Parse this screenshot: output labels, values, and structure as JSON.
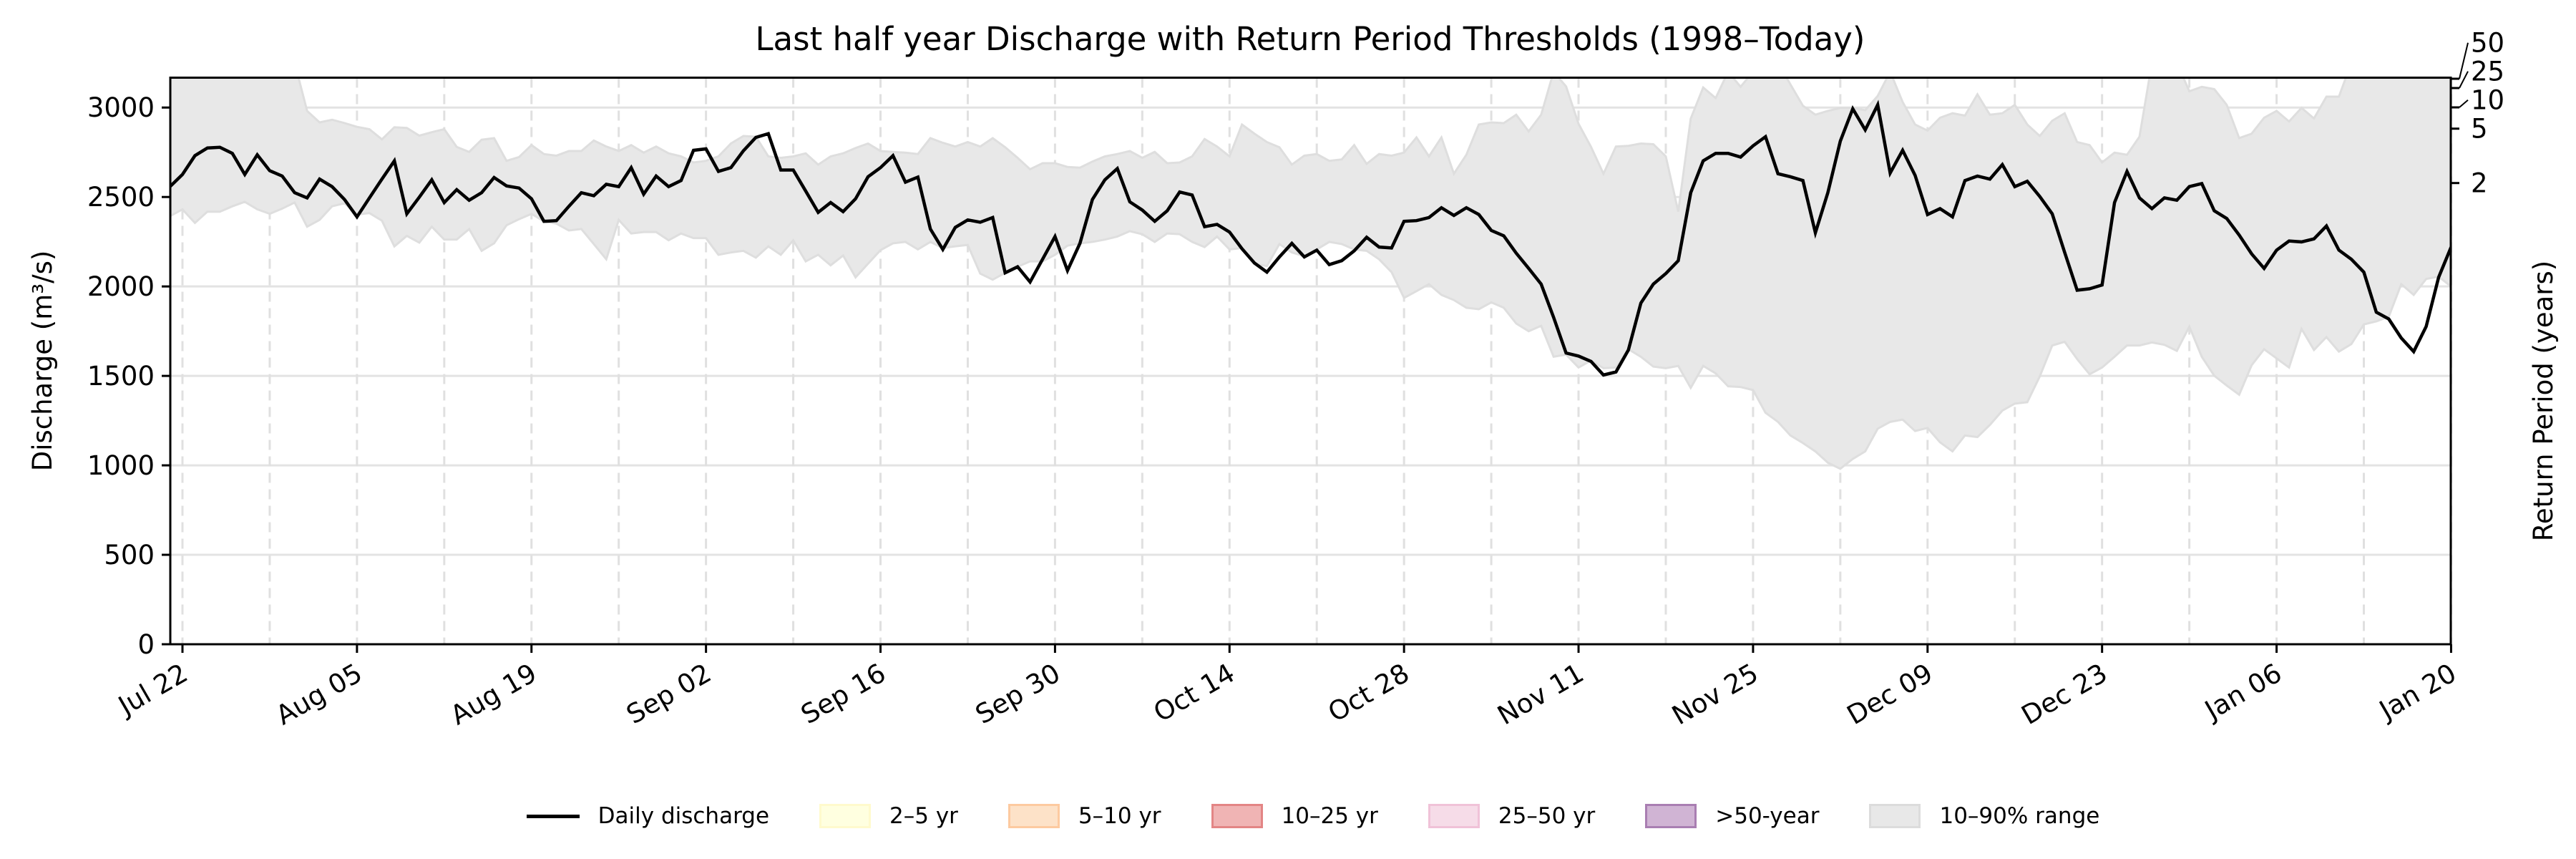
{
  "chart_data": {
    "type": "line",
    "title": "Last half year Discharge with Return Period Thresholds (1998–Today)",
    "ylabel": "Discharge (m³/s)",
    "ylabel_right": "Return Period (years)",
    "ylim": [
      0,
      3167
    ],
    "yticks": [
      0,
      500,
      1000,
      1500,
      2000,
      2500,
      3000
    ],
    "ytick_labels": [
      "0",
      "500",
      "1000",
      "1500",
      "2000",
      "2500",
      "3000"
    ],
    "xtick_labels": [
      "Jul 22",
      "Aug 05",
      "Aug 19",
      "Sep 02",
      "Sep 16",
      "Sep 30",
      "Oct 14",
      "Oct 28",
      "Nov 11",
      "Nov 25",
      "Dec 09",
      "Dec 23",
      "Jan 06",
      "Jan 20"
    ],
    "grid": true,
    "legend_position": "bottom-center",
    "return_period_axis": {
      "tick_labels": [
        "2",
        "5",
        "10",
        "25",
        "50"
      ],
      "discharge_values": [
        2578,
        2882,
        3001,
        3109,
        3161
      ]
    },
    "x": [
      "Jul 21",
      "Jul 22",
      "Jul 23",
      "Jul 24",
      "Jul 25",
      "Jul 26",
      "Jul 27",
      "Jul 28",
      "Jul 29",
      "Jul 30",
      "Jul 31",
      "Aug 01",
      "Aug 02",
      "Aug 03",
      "Aug 04",
      "Aug 05",
      "Aug 06",
      "Aug 07",
      "Aug 08",
      "Aug 09",
      "Aug 10",
      "Aug 11",
      "Aug 12",
      "Aug 13",
      "Aug 14",
      "Aug 15",
      "Aug 16",
      "Aug 17",
      "Aug 18",
      "Aug 19",
      "Aug 20",
      "Aug 21",
      "Aug 22",
      "Aug 23",
      "Aug 24",
      "Aug 25",
      "Aug 26",
      "Aug 27",
      "Aug 28",
      "Aug 29",
      "Aug 30",
      "Aug 31",
      "Sep 01",
      "Sep 02",
      "Sep 03",
      "Sep 04",
      "Sep 05",
      "Sep 06",
      "Sep 07",
      "Sep 08",
      "Sep 09",
      "Sep 10",
      "Sep 11",
      "Sep 12",
      "Sep 13",
      "Sep 14",
      "Sep 15",
      "Sep 16",
      "Sep 17",
      "Sep 18",
      "Sep 19",
      "Sep 20",
      "Sep 21",
      "Sep 22",
      "Sep 23",
      "Sep 24",
      "Sep 25",
      "Sep 26",
      "Sep 27",
      "Sep 28",
      "Sep 29",
      "Sep 30",
      "Oct 01",
      "Oct 02",
      "Oct 03",
      "Oct 04",
      "Oct 05",
      "Oct 06",
      "Oct 07",
      "Oct 08",
      "Oct 09",
      "Oct 10",
      "Oct 11",
      "Oct 12",
      "Oct 13",
      "Oct 14",
      "Oct 15",
      "Oct 16",
      "Oct 17",
      "Oct 18",
      "Oct 19",
      "Oct 20",
      "Oct 21",
      "Oct 22",
      "Oct 23",
      "Oct 24",
      "Oct 25",
      "Oct 26",
      "Oct 27",
      "Oct 28",
      "Oct 29",
      "Oct 30",
      "Oct 31",
      "Nov 01",
      "Nov 02",
      "Nov 03",
      "Nov 04",
      "Nov 05",
      "Nov 06",
      "Nov 07",
      "Nov 08",
      "Nov 09",
      "Nov 10",
      "Nov 11",
      "Nov 12",
      "Nov 13",
      "Nov 14",
      "Nov 15",
      "Nov 16",
      "Nov 17",
      "Nov 18",
      "Nov 19",
      "Nov 20",
      "Nov 21",
      "Nov 22",
      "Nov 23",
      "Nov 24",
      "Nov 25",
      "Nov 26",
      "Nov 27",
      "Nov 28",
      "Nov 29",
      "Nov 30",
      "Dec 01",
      "Dec 02",
      "Dec 03",
      "Dec 04",
      "Dec 05",
      "Dec 06",
      "Dec 07",
      "Dec 08",
      "Dec 09",
      "Dec 10",
      "Dec 11",
      "Dec 12",
      "Dec 13",
      "Dec 14",
      "Dec 15",
      "Dec 16",
      "Dec 17",
      "Dec 18",
      "Dec 19",
      "Dec 20",
      "Dec 21",
      "Dec 22",
      "Dec 23",
      "Dec 24",
      "Dec 25",
      "Dec 26",
      "Dec 27",
      "Dec 28",
      "Dec 29",
      "Dec 30",
      "Dec 31",
      "Jan 01",
      "Jan 02",
      "Jan 03",
      "Jan 04",
      "Jan 05",
      "Jan 06",
      "Jan 07",
      "Jan 08",
      "Jan 09",
      "Jan 10",
      "Jan 11",
      "Jan 12",
      "Jan 13",
      "Jan 14",
      "Jan 15",
      "Jan 16",
      "Jan 17",
      "Jan 18",
      "Jan 19",
      "Jan 20"
    ],
    "series": [
      {
        "name": "Daily discharge",
        "color": "#000000",
        "values": [
          2558,
          2626,
          2731,
          2774,
          2778,
          2744,
          2626,
          2736,
          2647,
          2617,
          2524,
          2495,
          2600,
          2558,
          2486,
          2389,
          2495,
          2600,
          2702,
          2406,
          2499,
          2596,
          2469,
          2541,
          2482,
          2524,
          2609,
          2562,
          2550,
          2490,
          2364,
          2368,
          2448,
          2524,
          2507,
          2571,
          2558,
          2664,
          2516,
          2617,
          2558,
          2592,
          2761,
          2769,
          2643,
          2664,
          2758,
          2833,
          2854,
          2651,
          2651,
          2533,
          2414,
          2469,
          2418,
          2490,
          2613,
          2664,
          2731,
          2583,
          2611,
          2321,
          2207,
          2330,
          2372,
          2359,
          2385,
          2076,
          2110,
          2025,
          2152,
          2279,
          2089,
          2241,
          2486,
          2596,
          2659,
          2473,
          2427,
          2364,
          2423,
          2528,
          2511,
          2334,
          2347,
          2304,
          2211,
          2131,
          2080,
          2165,
          2241,
          2165,
          2203,
          2122,
          2144,
          2199,
          2275,
          2220,
          2215,
          2364,
          2368,
          2385,
          2440,
          2397,
          2440,
          2402,
          2313,
          2283,
          2186,
          2101,
          2013,
          1827,
          1628,
          1611,
          1581,
          1505,
          1522,
          1645,
          1907,
          2013,
          2072,
          2144,
          2524,
          2702,
          2744,
          2744,
          2723,
          2786,
          2837,
          2630,
          2613,
          2592,
          2300,
          2524,
          2812,
          2993,
          2875,
          3015,
          2634,
          2761,
          2621,
          2402,
          2435,
          2389,
          2592,
          2617,
          2600,
          2681,
          2558,
          2588,
          2503,
          2406,
          2190,
          1979,
          1987,
          2008,
          2469,
          2643,
          2495,
          2435,
          2495,
          2482,
          2558,
          2575,
          2423,
          2380,
          2287,
          2182,
          2101,
          2203,
          2254,
          2249,
          2266,
          2338,
          2203,
          2152,
          2080,
          1856,
          1818,
          1712,
          1636,
          1776,
          2051,
          2220
        ]
      }
    ],
    "range_band": {
      "name": "10–90% range",
      "color": "#e8e8e8",
      "lower": [
        2393,
        2431,
        2355,
        2418,
        2418,
        2448,
        2473,
        2431,
        2406,
        2435,
        2469,
        2334,
        2372,
        2448,
        2465,
        2402,
        2410,
        2368,
        2224,
        2283,
        2245,
        2334,
        2262,
        2262,
        2321,
        2199,
        2241,
        2342,
        2376,
        2406,
        2364,
        2351,
        2313,
        2321,
        2237,
        2152,
        2372,
        2296,
        2304,
        2304,
        2258,
        2296,
        2270,
        2270,
        2177,
        2190,
        2199,
        2161,
        2224,
        2177,
        2258,
        2140,
        2177,
        2118,
        2173,
        2051,
        2127,
        2203,
        2241,
        2249,
        2207,
        2249,
        2215,
        2224,
        2232,
        2072,
        2038,
        2076,
        2110,
        2140,
        2140,
        2177,
        2228,
        2241,
        2249,
        2262,
        2279,
        2309,
        2292,
        2249,
        2296,
        2292,
        2249,
        2220,
        2279,
        2207,
        2215,
        2127,
        2114,
        2237,
        2190,
        2169,
        2207,
        2249,
        2237,
        2207,
        2199,
        2152,
        2080,
        1936,
        1974,
        2013,
        1953,
        1924,
        1881,
        1873,
        1911,
        1881,
        1793,
        1750,
        1780,
        1607,
        1619,
        1547,
        1586,
        1543,
        1547,
        1649,
        1607,
        1552,
        1543,
        1556,
        1433,
        1556,
        1514,
        1442,
        1438,
        1421,
        1294,
        1243,
        1167,
        1125,
        1078,
        1015,
        981,
        1036,
        1078,
        1205,
        1243,
        1256,
        1192,
        1209,
        1129,
        1078,
        1167,
        1158,
        1226,
        1306,
        1345,
        1353,
        1497,
        1670,
        1691,
        1594,
        1509,
        1547,
        1607,
        1670,
        1670,
        1687,
        1674,
        1640,
        1776,
        1607,
        1501,
        1446,
        1395,
        1560,
        1649,
        1598,
        1547,
        1763,
        1645,
        1717,
        1636,
        1678,
        1788,
        1805,
        1831,
        2013,
        1953,
        2042,
        2055,
        2000
      ],
      "upper": [
        3250,
        3250,
        3250,
        3250,
        3250,
        3250,
        3250,
        3250,
        3250,
        3250,
        3250,
        2981,
        2917,
        2932,
        2913,
        2892,
        2879,
        2822,
        2890,
        2886,
        2843,
        2862,
        2879,
        2780,
        2752,
        2820,
        2829,
        2702,
        2723,
        2790,
        2740,
        2731,
        2757,
        2757,
        2816,
        2782,
        2757,
        2790,
        2748,
        2782,
        2744,
        2727,
        2693,
        2702,
        2727,
        2799,
        2841,
        2837,
        2727,
        2719,
        2727,
        2744,
        2681,
        2727,
        2744,
        2774,
        2799,
        2757,
        2752,
        2748,
        2740,
        2829,
        2803,
        2782,
        2807,
        2782,
        2829,
        2778,
        2719,
        2655,
        2689,
        2689,
        2668,
        2664,
        2698,
        2727,
        2740,
        2757,
        2719,
        2752,
        2689,
        2693,
        2727,
        2824,
        2782,
        2727,
        2905,
        2854,
        2807,
        2778,
        2681,
        2731,
        2740,
        2702,
        2710,
        2790,
        2685,
        2740,
        2731,
        2748,
        2833,
        2727,
        2833,
        2630,
        2736,
        2905,
        2917,
        2913,
        2960,
        2867,
        2960,
        3200,
        3118,
        2909,
        2780,
        2630,
        2782,
        2786,
        2799,
        2795,
        2727,
        2418,
        2938,
        3112,
        3053,
        3200,
        3116,
        3200,
        3250,
        3250,
        3129,
        3010,
        2960,
        2981,
        2998,
        2998,
        2985,
        3065,
        3200,
        3031,
        2905,
        2871,
        2943,
        2968,
        2955,
        3074,
        2960,
        2968,
        3015,
        2905,
        2841,
        2926,
        2968,
        2807,
        2790,
        2693,
        2748,
        2736,
        2837,
        3250,
        3250,
        3250,
        3091,
        3116,
        3103,
        3015,
        2829,
        2854,
        2943,
        2981,
        2922,
        2998,
        2939,
        3061,
        3061,
        3250,
        3250,
        3250,
        3250,
        3250,
        3250,
        3250,
        3250,
        3250
      ]
    },
    "legend": [
      {
        "label": "Daily discharge",
        "kind": "line",
        "color": "#000000"
      },
      {
        "label": "2–5 yr",
        "kind": "patch",
        "fill": "#ffffe0",
        "edge": "#fffacd"
      },
      {
        "label": "5–10 yr",
        "kind": "patch",
        "fill": "#fde2c8",
        "edge": "#fdcaa0"
      },
      {
        "label": "10–25 yr",
        "kind": "patch",
        "fill": "#f0b4b4",
        "edge": "#e38585"
      },
      {
        "label": "25–50 yr",
        "kind": "patch",
        "fill": "#f6dce8",
        "edge": "#f0c2d8"
      },
      {
        "label": ">50-year",
        "kind": "patch",
        "fill": "#d0b4d4",
        "edge": "#a97eb2"
      },
      {
        "label": "10–90% range",
        "kind": "patch",
        "fill": "#e8e8e8",
        "edge": "#dcdcdc"
      }
    ]
  }
}
